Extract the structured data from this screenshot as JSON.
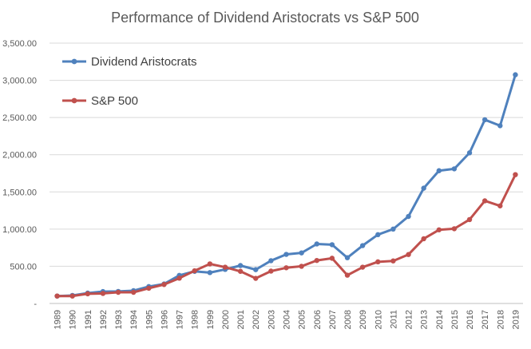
{
  "chart_data": {
    "type": "line",
    "title": "Performance of Dividend Aristocrats vs S&P 500",
    "xlabel": "",
    "ylabel": "",
    "ylim": [
      0,
      3500
    ],
    "y_ticks": [
      {
        "value": 0,
        "label": "-"
      },
      {
        "value": 500,
        "label": "500.00"
      },
      {
        "value": 1000,
        "label": "1,000.00"
      },
      {
        "value": 1500,
        "label": "1,500.00"
      },
      {
        "value": 2000,
        "label": "2,000.00"
      },
      {
        "value": 2500,
        "label": "2,500.00"
      },
      {
        "value": 3000,
        "label": "3,000.00"
      },
      {
        "value": 3500,
        "label": "3,500.00"
      }
    ],
    "grid": true,
    "legend_position": "top-left",
    "categories": [
      "1989",
      "1990",
      "1991",
      "1992",
      "1993",
      "1994",
      "1995",
      "1996",
      "1997",
      "1998",
      "1999",
      "2000",
      "2001",
      "2002",
      "2003",
      "2004",
      "2005",
      "2006",
      "2007",
      "2008",
      "2009",
      "2010",
      "2011",
      "2012",
      "2013",
      "2014",
      "2015",
      "2016",
      "2017",
      "2018",
      "2019"
    ],
    "series": [
      {
        "name": "Dividend Aristocrats",
        "color": "#4f81bd",
        "values": [
          100,
          108,
          140,
          160,
          162,
          172,
          227,
          262,
          378,
          432,
          415,
          458,
          510,
          455,
          575,
          660,
          680,
          800,
          790,
          615,
          778,
          925,
          1000,
          1170,
          1550,
          1785,
          1810,
          2025,
          2470,
          2390,
          3075
        ]
      },
      {
        "name": "S&P 500",
        "color": "#c0504d",
        "values": [
          100,
          100,
          130,
          135,
          150,
          150,
          205,
          255,
          340,
          440,
          532,
          488,
          432,
          338,
          435,
          480,
          500,
          578,
          608,
          380,
          488,
          560,
          572,
          658,
          870,
          990,
          1005,
          1128,
          1380,
          1312,
          1732
        ]
      }
    ]
  }
}
